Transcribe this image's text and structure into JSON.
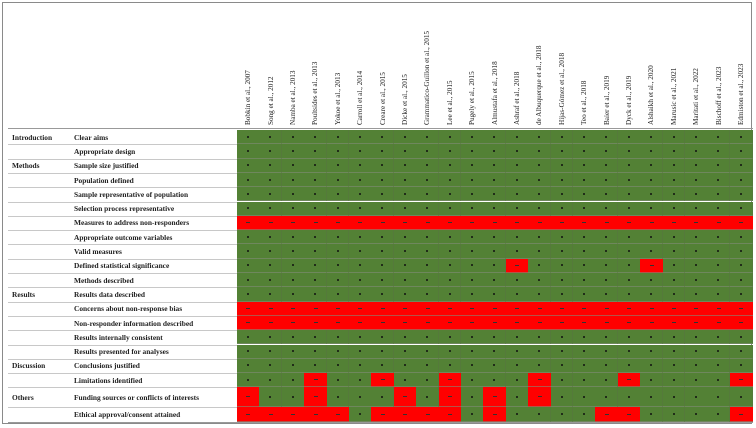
{
  "colors": {
    "met": "#538135",
    "not_met": "#ff0000"
  },
  "chart_data": {
    "type": "table",
    "title": "",
    "columns": [
      "Bobkin et al., 2007",
      "Song et al., 2012",
      "Namba et al., 2013",
      "Poultsides et al., 2013",
      "Yokoe et al., 2013",
      "Carroll et al., 2014",
      "Creare et al., 2015",
      "Dicke et al., 2015",
      "Grammatico-Guillon et al., 2015",
      "Lee et al., 2015",
      "Pugely et al., 2015",
      "Almustafa et al., 2018",
      "Ashraf et al., 2018",
      "de Albuquerque et al., 2018",
      "Hijas-Gómez et al., 2018",
      "Teo et al., 2018",
      "Baier et al., 2019",
      "Dyck et al., 2019",
      "Alshaikh et al., 2020",
      "Marusic et al., 2021",
      "Maritati et al., 2022",
      "Bischoff et al., 2023",
      "Edmiston et al., 2023"
    ],
    "sections": [
      {
        "label": "Introduction",
        "start_row": 0
      },
      {
        "label": "Methods",
        "start_row": 2
      },
      {
        "label": "Results",
        "start_row": 11
      },
      {
        "label": "Discussion",
        "start_row": 16
      },
      {
        "label": "Others",
        "start_row": 18
      }
    ],
    "rows": [
      {
        "criterion": "Clear aims",
        "unmet": []
      },
      {
        "criterion": "Appropriate  design",
        "unmet": []
      },
      {
        "criterion": "Sample size justified",
        "unmet": []
      },
      {
        "criterion": "Population  defined",
        "unmet": []
      },
      {
        "criterion": "Sample representative  of population",
        "unmet": []
      },
      {
        "criterion": "Selection process representative",
        "unmet": []
      },
      {
        "criterion": "Measures to address non-responders",
        "unmet": "all"
      },
      {
        "criterion": "Appropriate  outcome  variables",
        "unmet": []
      },
      {
        "criterion": "Valid measures",
        "unmet": []
      },
      {
        "criterion": "Defined  statistical significance",
        "unmet": [
          12,
          18
        ]
      },
      {
        "criterion": "Methods  described",
        "unmet": []
      },
      {
        "criterion": "Results data  described",
        "unmet": []
      },
      {
        "criterion": "Concerns about  non-response  bias",
        "unmet": "all"
      },
      {
        "criterion": "Non-responder  information  described",
        "unmet": "all"
      },
      {
        "criterion": "Results internally consistent",
        "unmet": []
      },
      {
        "criterion": "Results presented  for analyses",
        "unmet": []
      },
      {
        "criterion": "Conclusions justified",
        "unmet": []
      },
      {
        "criterion": "Limitations  identified",
        "unmet": [
          3,
          6,
          9,
          13,
          17,
          22
        ]
      },
      {
        "criterion": "Funding  sources or conflicts of interests",
        "unmet": [
          0,
          3,
          7,
          9,
          11,
          13
        ]
      },
      {
        "criterion": "Ethical  approval/consent  attained",
        "unmet": [
          0,
          1,
          2,
          3,
          4,
          6,
          7,
          8,
          9,
          11,
          16,
          17,
          22
        ]
      }
    ]
  }
}
